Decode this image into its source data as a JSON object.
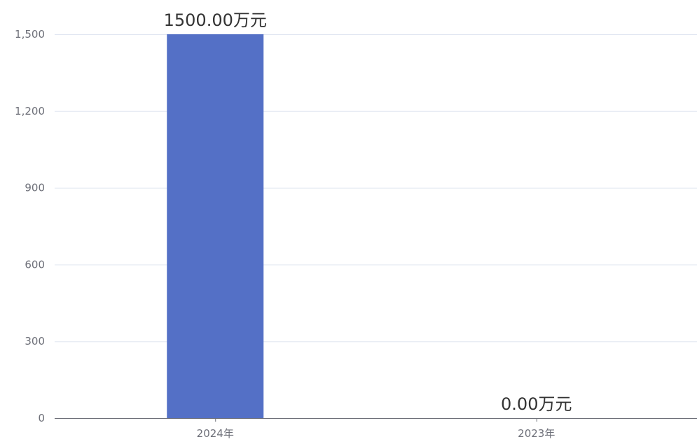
{
  "chart_data": {
    "type": "bar",
    "categories": [
      "2024年",
      "2023年"
    ],
    "values": [
      1500.0,
      0.0
    ],
    "data_labels": [
      "1500.00万元",
      "0.00万元"
    ],
    "y_ticks": [
      "0",
      "300",
      "600",
      "900",
      "1,200",
      "1,500"
    ],
    "ylim": [
      0,
      1500
    ],
    "grid": true,
    "legend": false,
    "colors": {
      "bar": "#5470c6",
      "grid": "#e0e6f1",
      "axis": "#6e7079",
      "tick_text": "#6e7079",
      "label_text": "#333333"
    }
  }
}
